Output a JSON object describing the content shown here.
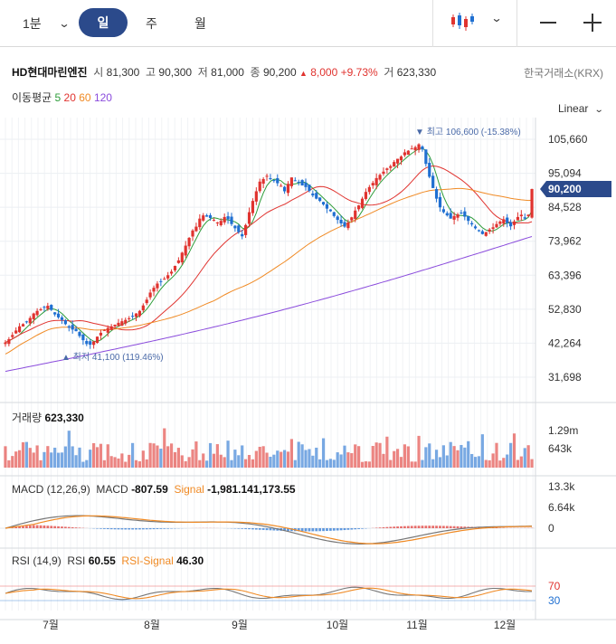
{
  "toolbar": {
    "interval": "1분",
    "tabs": [
      "일",
      "주",
      "월"
    ],
    "active_tab": "일"
  },
  "stock": {
    "name": "HD현대마린엔진",
    "open_label": "시",
    "open": "81,300",
    "high_label": "고",
    "high": "90,300",
    "low_label": "저",
    "low": "81,000",
    "close_label": "종",
    "close": "90,200",
    "change_arrow": "▲",
    "change": "8,000",
    "change_pct": "+9.73%",
    "volume_label": "거",
    "volume": "623,330",
    "exchange": "한국거래소(KRX)"
  },
  "moving_average": {
    "label": "이동평균",
    "periods": [
      "5",
      "20",
      "60",
      "120"
    ],
    "colors": [
      "#2e9d3a",
      "#e0332f",
      "#f08a24",
      "#8a4bdc"
    ]
  },
  "scale_mode": "Linear",
  "price_axis": [
    "105,660",
    "95,094",
    "84,528",
    "73,962",
    "63,396",
    "52,830",
    "42,264",
    "31,698"
  ],
  "current_price_tag": "90,200",
  "annotations": {
    "high": "▼ 최고 106,600 (-15.38%)",
    "low": "▲ 최저 41,100 (119.46%)"
  },
  "volume_panel": {
    "label": "거래량",
    "value": "623,330",
    "axis": [
      "1.29m",
      "643k"
    ]
  },
  "macd_panel": {
    "label": "MACD (12,26,9)",
    "macd_label": "MACD",
    "macd_value": "-807.59",
    "signal_label": "Signal",
    "signal_value": "-1,981.141,173.55",
    "axis": [
      "13.3k",
      "6.64k",
      "0"
    ]
  },
  "rsi_panel": {
    "label": "RSI (14,9)",
    "rsi_label": "RSI",
    "rsi_value": "60.55",
    "signal_label": "RSI-Signal",
    "signal_value": "46.30",
    "axis": [
      "70",
      "30"
    ]
  },
  "x_axis": [
    "7월",
    "8월",
    "9월",
    "10월",
    "11월",
    "12월"
  ],
  "colors": {
    "up": "#e0332f",
    "down": "#1f6fd1",
    "accent": "#2b4a8b",
    "annotation": "#4a6aa8"
  },
  "chart_data": {
    "type": "line",
    "ylim": [
      31698,
      105660
    ],
    "series": [
      {
        "name": "close",
        "values": [
          42500,
          43500,
          44800,
          46200,
          47500,
          48200,
          49000,
          50100,
          51500,
          52300,
          52800,
          53400,
          53900,
          52600,
          51200,
          50300,
          49500,
          48200,
          47100,
          46500,
          46000,
          44500,
          43200,
          42000,
          41800,
          42800,
          44300,
          45500,
          46400,
          47000,
          47500,
          48000,
          48600,
          49100,
          49500,
          50000,
          50700,
          51500,
          52300,
          54000,
          55800,
          58000,
          59500,
          60800,
          61500,
          62300,
          63400,
          64500,
          66300,
          68000,
          70400,
          72600,
          75000,
          77300,
          78500,
          81000,
          82000,
          81600,
          81200,
          80600,
          79800,
          80300,
          81500,
          80800,
          79300,
          78000,
          76800,
          75500,
          79000,
          83000,
          86500,
          89500,
          92500,
          93300,
          94300,
          93500,
          92700,
          92000,
          91200,
          89500,
          91800,
          93800,
          92800,
          92300,
          91300,
          90800,
          89600,
          88200,
          87200,
          86500,
          85400,
          84100,
          83300,
          81800,
          80600,
          79500,
          78500,
          79800,
          81400,
          83500,
          85100,
          87200,
          89300,
          90800,
          92100,
          93600,
          94600,
          95600,
          96600,
          97300,
          98600,
          99600,
          100300,
          101600,
          102100,
          102800,
          103200,
          104100,
          102500,
          98000,
          94000,
          90500,
          87200,
          84500,
          83000,
          82000,
          81000,
          81800,
          82300,
          82800,
          81600,
          80300,
          79200,
          78000,
          77100,
          76200,
          76800,
          77600,
          78300,
          79300,
          80100,
          80800,
          79600,
          78600,
          80100,
          81500,
          82200,
          81000,
          82200,
          90200
        ]
      },
      {
        "name": "5",
        "values": []
      },
      {
        "name": "20",
        "values": []
      },
      {
        "name": "60",
        "values": []
      },
      {
        "name": "120",
        "values": []
      }
    ]
  }
}
